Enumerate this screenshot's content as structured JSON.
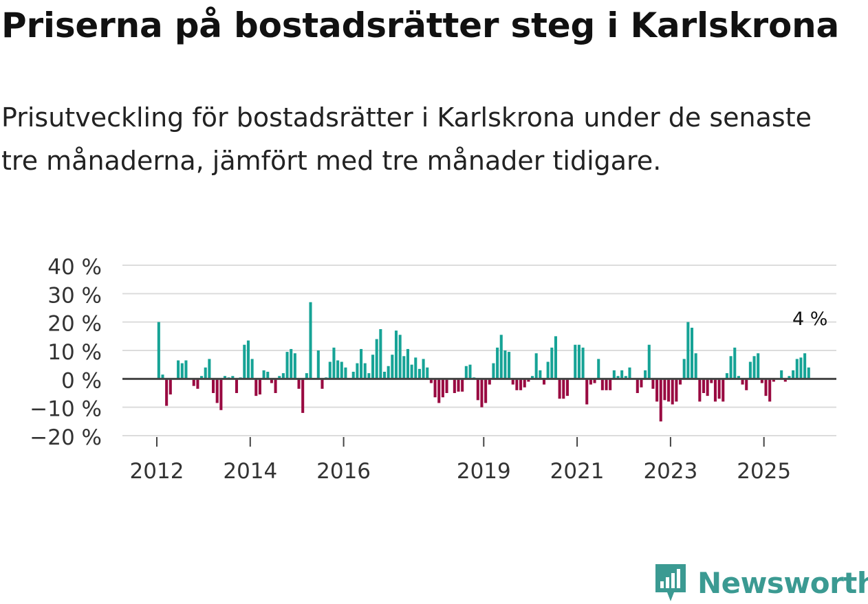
{
  "title": "Priserna på bostadsrätter steg i Karlskrona",
  "subtitle": "Prisutveckling för bostadsrätter i Karlskrona under de senaste tre månaderna, jämfört med tre månader tidigare.",
  "brand": {
    "name": "Newsworthy",
    "color": "#3b9a92"
  },
  "chart_data": {
    "type": "bar",
    "title": "",
    "xlabel": "",
    "ylabel": "",
    "ylim": [
      -20,
      40
    ],
    "yticks": [
      -20,
      -10,
      0,
      10,
      20,
      30,
      40
    ],
    "ytick_labels": [
      "−20 %",
      "−10 %",
      "0 %",
      "10 %",
      "20 %",
      "30 %",
      "40 %"
    ],
    "x_start_year": 2012,
    "x_end_year": 2026,
    "xtick_years": [
      2012,
      2014,
      2016,
      2019,
      2021,
      2023,
      2025
    ],
    "xtick_labels": [
      "2012",
      "2014",
      "2016",
      "2019",
      "2021",
      "2023",
      "2025"
    ],
    "positive_color": "#16a396",
    "negative_color": "#990a41",
    "last_value_label": "4 %",
    "start": "2012-01",
    "frequency": "monthly",
    "values": [
      20,
      1.5,
      -9.5,
      -5.5,
      null,
      6.5,
      5.5,
      6.5,
      null,
      -2.5,
      -3.5,
      1,
      4,
      7,
      -5,
      -8.5,
      -11,
      1,
      0.5,
      1,
      -5,
      0.5,
      12,
      13.5,
      7,
      -6,
      -5.5,
      3,
      2.5,
      -1.5,
      -5,
      1,
      2,
      9.5,
      10.5,
      9,
      -3.5,
      -12,
      2,
      27,
      null,
      10,
      -3.5,
      0.5,
      6,
      11,
      6.5,
      6,
      4,
      null,
      2.5,
      5.5,
      10.5,
      5.5,
      2,
      8.5,
      14,
      17.5,
      2.5,
      4.5,
      8.5,
      17,
      15.5,
      8,
      10.5,
      5,
      7.5,
      3.5,
      7,
      4,
      -1.5,
      -6.5,
      -8.5,
      -6.5,
      -5,
      null,
      -5,
      -4.5,
      -4.5,
      4.5,
      5,
      0.5,
      -7.5,
      -10,
      -8.5,
      -2,
      5.5,
      11,
      15.5,
      10,
      9.5,
      -2,
      -4,
      -4,
      -3,
      -1,
      1,
      9,
      3,
      -2,
      6,
      11,
      15,
      -7,
      -7,
      -6,
      null,
      12,
      12,
      11,
      -9,
      -2,
      -1.5,
      7,
      -4,
      -4,
      -4,
      3,
      1,
      3,
      1,
      4,
      null,
      -5,
      -3,
      3,
      12,
      -3.5,
      -8,
      -15,
      -7.5,
      -8,
      -9,
      -8,
      -2,
      7,
      20,
      18,
      9,
      -8,
      -5,
      -6,
      -1.5,
      -8,
      -7,
      -8,
      2,
      8,
      11,
      1,
      -2,
      -4,
      6,
      8,
      9,
      -1.5,
      -6,
      -8,
      -1,
      null,
      3,
      -1,
      1,
      3,
      7,
      7.5,
      9,
      4
    ]
  }
}
